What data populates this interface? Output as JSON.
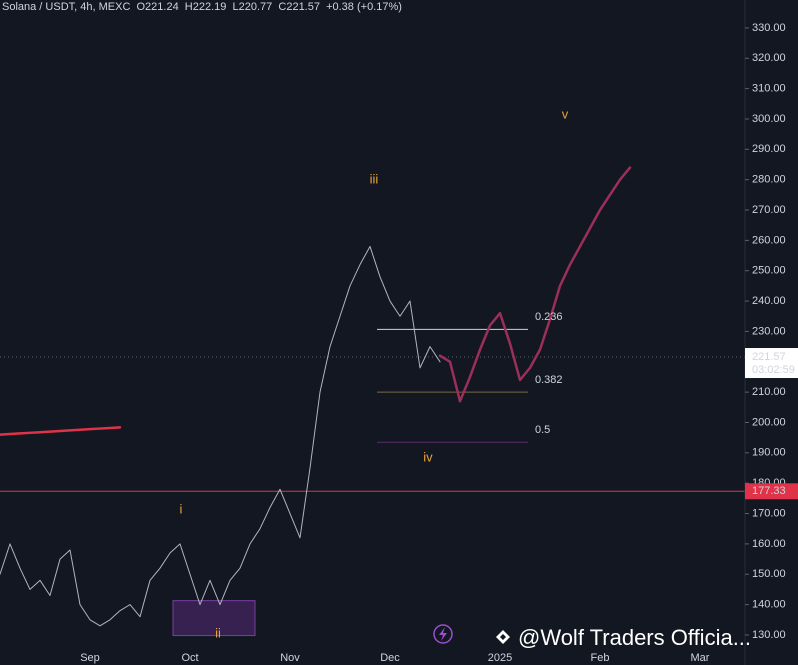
{
  "chart_data": {
    "type": "line",
    "header": "Solana / USDT, 4h, MEXC  O221.24  H222.19  L220.77  C221.57  +0.38 (+0.17%)",
    "categories": [
      null,
      null,
      null,
      null,
      null,
      null,
      null,
      null,
      null,
      "Sep",
      null,
      null,
      null,
      null,
      null,
      null,
      null,
      null,
      null,
      "Oct",
      null,
      null,
      null,
      null,
      null,
      null,
      null,
      null,
      null,
      "Nov",
      null,
      null,
      null,
      null,
      null,
      null,
      null,
      null,
      null,
      "Dec",
      null,
      null,
      null,
      null,
      null,
      null,
      null,
      null,
      null,
      null,
      "2025",
      null,
      null,
      null,
      null,
      null,
      null,
      null,
      null,
      null,
      "Feb",
      null,
      null,
      null,
      null,
      null,
      null,
      null,
      null,
      null,
      "Mar",
      null,
      null,
      null,
      null
    ],
    "series": [
      {
        "color": "#b2b5be",
        "values": [
          150,
          160,
          152,
          145,
          148,
          143,
          155,
          158,
          140,
          135,
          133,
          135,
          138,
          140,
          136,
          148,
          152,
          157,
          160,
          150,
          140,
          148,
          140,
          148,
          152,
          160,
          165,
          172,
          178,
          170,
          162,
          185,
          210,
          225,
          235,
          245,
          252,
          258,
          248,
          240,
          235,
          240,
          218,
          225,
          220,
          null,
          null,
          null,
          null,
          null,
          null,
          null,
          null,
          null,
          null,
          null,
          null,
          null,
          null,
          null,
          null,
          null,
          null,
          null,
          null,
          null,
          null,
          null,
          null,
          null,
          null,
          null,
          null,
          null,
          null
        ]
      },
      {
        "color": "#9c2f5a",
        "values": [
          null,
          null,
          null,
          null,
          null,
          null,
          null,
          null,
          null,
          null,
          null,
          null,
          null,
          null,
          null,
          null,
          null,
          null,
          null,
          null,
          null,
          null,
          null,
          null,
          null,
          null,
          null,
          null,
          null,
          null,
          null,
          null,
          null,
          null,
          null,
          null,
          null,
          null,
          null,
          null,
          null,
          null,
          null,
          null,
          222,
          220,
          207,
          215,
          224,
          232,
          236,
          226,
          214,
          218,
          224,
          234,
          245,
          252,
          258,
          264,
          270,
          275,
          280,
          284,
          null,
          null,
          null,
          null,
          null,
          null,
          null,
          null,
          null,
          null,
          null
        ]
      },
      {
        "color": "#e0334a",
        "values": [
          196,
          196.2,
          196.4,
          196.6,
          196.8,
          197,
          197.2,
          197.4,
          197.6,
          197.8,
          198,
          198.2,
          198.4,
          null,
          null,
          null,
          null,
          null,
          null,
          null,
          null,
          null,
          null,
          null,
          null,
          null,
          null,
          null,
          null,
          null,
          null,
          null,
          null,
          null,
          null,
          null,
          null,
          null,
          null,
          null,
          null,
          null,
          null,
          null,
          null,
          null,
          null,
          null,
          null,
          null,
          null,
          null,
          null,
          null,
          null,
          null,
          null,
          null,
          null,
          null,
          null,
          null,
          null,
          null,
          null,
          null,
          null,
          null,
          null,
          null,
          null,
          null,
          null,
          null,
          null
        ]
      }
    ],
    "ylim": [
      120.1,
      339.2
    ],
    "yticks": [
      {
        "value": 130,
        "label": "130.00"
      },
      {
        "value": 140,
        "label": "140.00"
      },
      {
        "value": 150,
        "label": "150.00"
      },
      {
        "value": 160,
        "label": "160.00"
      },
      {
        "value": 170,
        "label": "170.00"
      },
      {
        "value": 180,
        "label": "180.00"
      },
      {
        "value": 190,
        "label": "190.00"
      },
      {
        "value": 200,
        "label": "200.00"
      },
      {
        "value": 210,
        "label": "210.00"
      },
      {
        "value": 220,
        "label": "220.00"
      },
      {
        "value": 230,
        "label": "230.00"
      },
      {
        "value": 240,
        "label": "240.00"
      },
      {
        "value": 250,
        "label": "250.00"
      },
      {
        "value": 260,
        "label": "260.00"
      },
      {
        "value": 270,
        "label": "270.00"
      },
      {
        "value": 280,
        "label": "280.00"
      },
      {
        "value": 290,
        "label": "290.00"
      },
      {
        "value": 300,
        "label": "300.00"
      },
      {
        "value": 310,
        "label": "310.00"
      },
      {
        "value": 320,
        "label": "320.00"
      },
      {
        "value": 330,
        "label": "330.00"
      }
    ],
    "fib_levels": [
      {
        "label": "0.236",
        "value": 230.7,
        "color": "#d1d4dc"
      },
      {
        "label": "0.382",
        "value": 210,
        "color": "#7d6a45"
      },
      {
        "label": "0.5",
        "value": 193.5,
        "color": "#5a2d6a"
      }
    ],
    "horizontal_line": {
      "value": 177.33,
      "color": "#e0334a"
    },
    "zone": [
      129.8,
      141.3
    ],
    "last_price": 221.57,
    "countdown": "03:02:59",
    "annotations": [
      "i",
      "ii",
      "iii",
      "iv",
      "v"
    ],
    "watermark": "@Wolf Traders Officia..."
  }
}
